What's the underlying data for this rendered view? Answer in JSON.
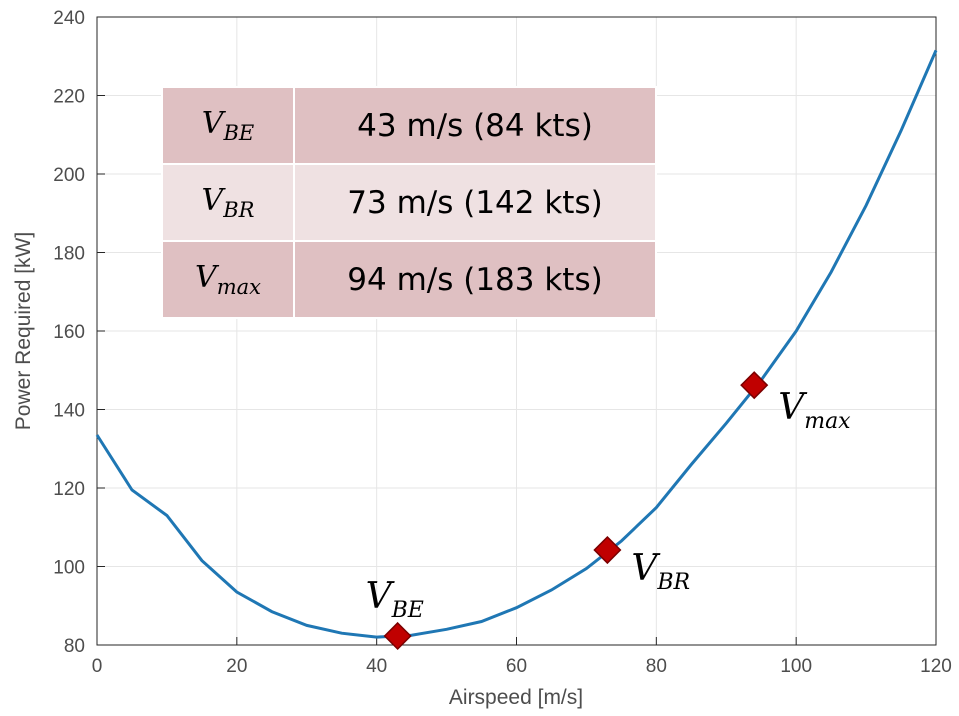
{
  "chart_data": {
    "type": "line",
    "xlabel": "Airspeed [m/s]",
    "ylabel": "Power Required [kW]",
    "xlim": [
      0,
      120
    ],
    "ylim": [
      80,
      240
    ],
    "xticks": [
      0,
      20,
      40,
      60,
      80,
      100,
      120
    ],
    "yticks": [
      80,
      100,
      120,
      140,
      160,
      180,
      200,
      220,
      240
    ],
    "grid": true,
    "line_color": "#1f77b4",
    "marker_color": "#c00000",
    "series": [
      {
        "x": [
          0,
          5,
          10,
          15,
          20,
          25,
          30,
          35,
          40,
          45,
          50,
          55,
          60,
          65,
          70,
          75,
          80,
          85,
          90,
          95,
          100,
          105,
          110,
          115,
          120
        ],
        "y": [
          133.5,
          119.5,
          113,
          101.5,
          93.5,
          88.5,
          85,
          83,
          82,
          82.5,
          84,
          86,
          89.5,
          94,
          99.5,
          106.5,
          115,
          126,
          136.5,
          147.5,
          160,
          175,
          192,
          211,
          231.5
        ]
      }
    ],
    "markers": [
      {
        "main": "V",
        "sub": "BE",
        "x": 43,
        "y": 82.3
      },
      {
        "main": "V",
        "sub": "BR",
        "x": 73,
        "y": 104.2
      },
      {
        "main": "V",
        "sub": "max",
        "x": 94,
        "y": 146.2
      }
    ]
  },
  "table": {
    "rows": [
      {
        "main": "V",
        "sub": "BE",
        "value": "43 m/s (84 kts)"
      },
      {
        "main": "V",
        "sub": "BR",
        "value": "73 m/s (142 kts)"
      },
      {
        "main": "V",
        "sub": "max",
        "value": "94 m/s (183 kts)"
      }
    ]
  }
}
